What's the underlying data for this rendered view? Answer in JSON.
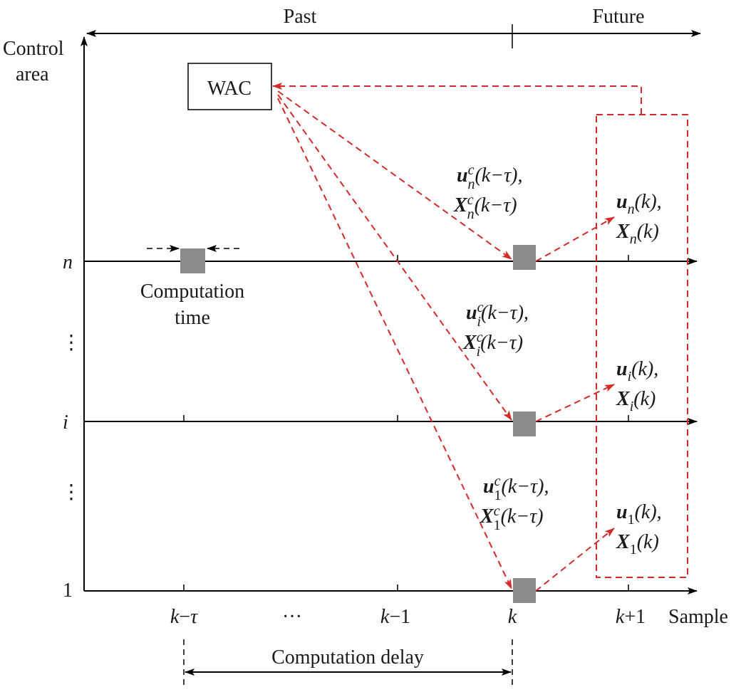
{
  "header": {
    "past": "Past",
    "future": "Future"
  },
  "y_axis": {
    "title_line1": "Control",
    "title_line2": "area",
    "labels": {
      "n": "n",
      "i": "i",
      "one": "1",
      "dots": "⋮"
    }
  },
  "x_axis": {
    "ticks": {
      "k_minus_tau": [
        "k",
        "−",
        "τ"
      ],
      "ellipsis": "···",
      "k_minus_1": [
        "k",
        "−1"
      ],
      "k": "k",
      "k_plus_1": [
        "k",
        "+1"
      ]
    },
    "sample": "Sample"
  },
  "wac": "WAC",
  "computation_time": {
    "line1": "Computation",
    "line2": "time"
  },
  "computation_delay": "Computation delay",
  "signals_in": {
    "n": {
      "u": "u",
      "u_sub": "n",
      "X": "X",
      "X_sub": "n",
      "sup": "c",
      "arg": "(k−τ),",
      "arg2": "(k−τ)"
    },
    "i": {
      "u": "u",
      "u_sub": "i",
      "X": "X",
      "X_sub": "i",
      "sup": "c",
      "arg": "(k−τ),",
      "arg2": "(k−τ)"
    },
    "one": {
      "u": "u",
      "u_sub": "1",
      "X": "X",
      "X_sub": "1",
      "sup": "c",
      "arg": "(k−τ),",
      "arg2": "(k−τ)"
    }
  },
  "signals_out": {
    "n": {
      "u": "u",
      "u_sub": "n",
      "X": "X",
      "X_sub": "n",
      "arg": "(k),",
      "arg2": "(k)"
    },
    "i": {
      "u": "u",
      "u_sub": "i",
      "X": "X",
      "X_sub": "i",
      "arg": "(k),",
      "arg2": "(k)"
    },
    "one": {
      "u": "u",
      "u_sub": "1",
      "X": "X",
      "X_sub": "1",
      "arg": "(k),",
      "arg2": "(k)"
    }
  },
  "colors": {
    "signal": "#d42a2a",
    "block": "#8a8c8e",
    "axis": "#000000"
  }
}
